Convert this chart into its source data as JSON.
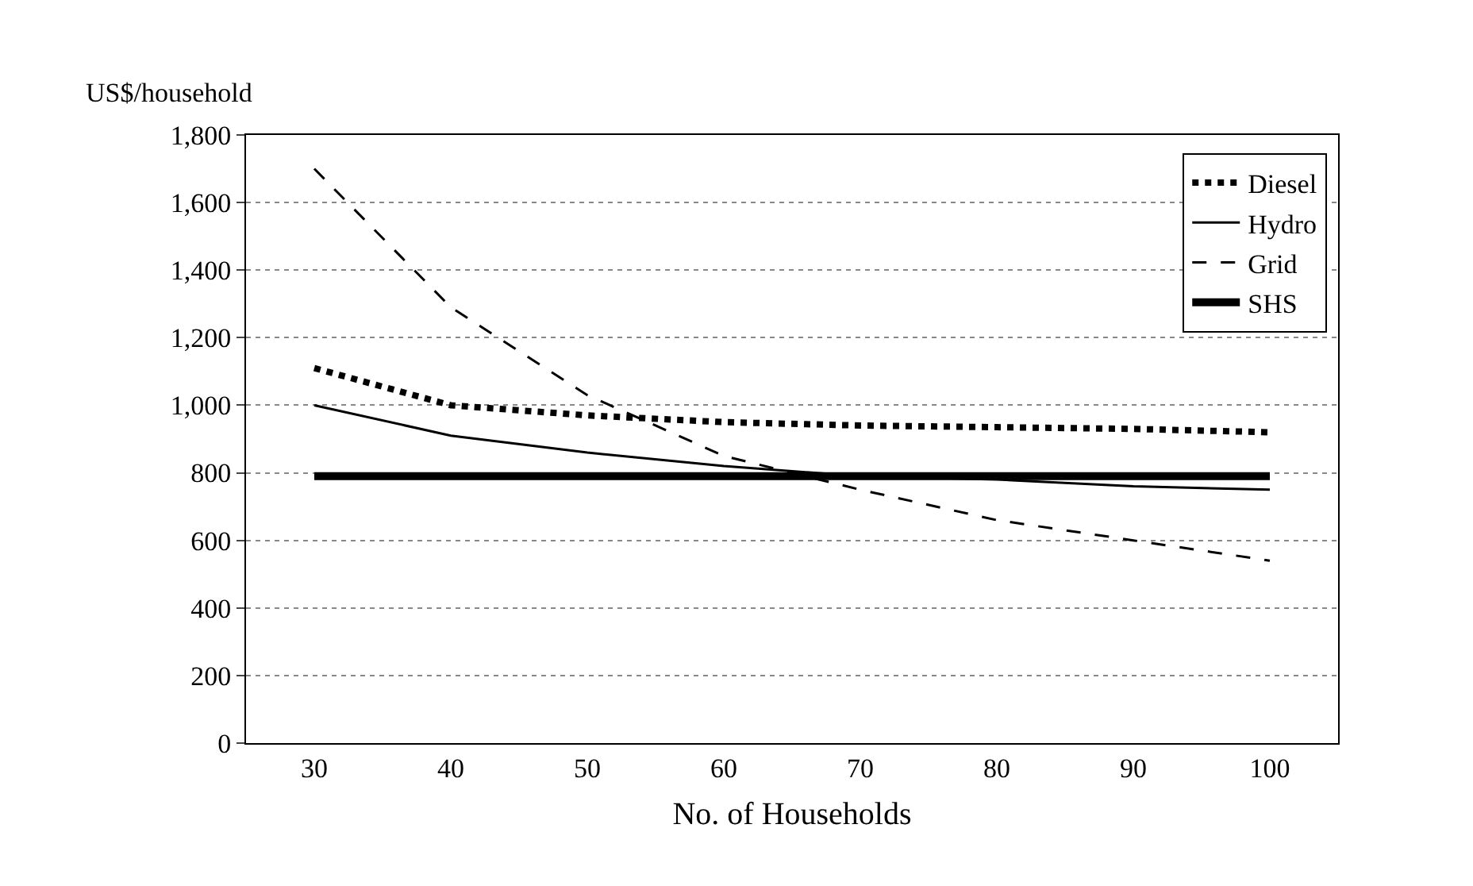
{
  "chart_data": {
    "type": "line",
    "ylabel": "US$/household",
    "xlabel": "No. of Households",
    "categories": [
      "30",
      "40",
      "50",
      "60",
      "70",
      "80",
      "90",
      "100"
    ],
    "ylim": [
      0,
      1800
    ],
    "yticks": [
      {
        "value": 0,
        "label": "0"
      },
      {
        "value": 200,
        "label": "200"
      },
      {
        "value": 400,
        "label": "400"
      },
      {
        "value": 600,
        "label": "600"
      },
      {
        "value": 800,
        "label": "800"
      },
      {
        "value": 1000,
        "label": "1,000"
      },
      {
        "value": 1200,
        "label": "1,200"
      },
      {
        "value": 1400,
        "label": "1,400"
      },
      {
        "value": 1600,
        "label": "1,600"
      },
      {
        "value": 1800,
        "label": "1,800"
      }
    ],
    "grid": "y",
    "legend": "top right",
    "marker": "none",
    "series": [
      {
        "name": "Diesel",
        "color": "#000000",
        "line_style": "dotted",
        "values": [
          1110,
          1000,
          970,
          950,
          940,
          935,
          930,
          920
        ]
      },
      {
        "name": "Hydro",
        "color": "#000000",
        "line_style": "solid",
        "values": [
          1000,
          910,
          860,
          820,
          790,
          780,
          760,
          750
        ]
      },
      {
        "name": "Grid",
        "color": "#000000",
        "line_style": "dashed",
        "values": [
          1700,
          1290,
          1030,
          850,
          750,
          660,
          600,
          540
        ]
      },
      {
        "name": "SHS",
        "color": "#000000",
        "line_style": "solid",
        "values": [
          790,
          790,
          790,
          790,
          790,
          790,
          790,
          790
        ]
      }
    ]
  }
}
